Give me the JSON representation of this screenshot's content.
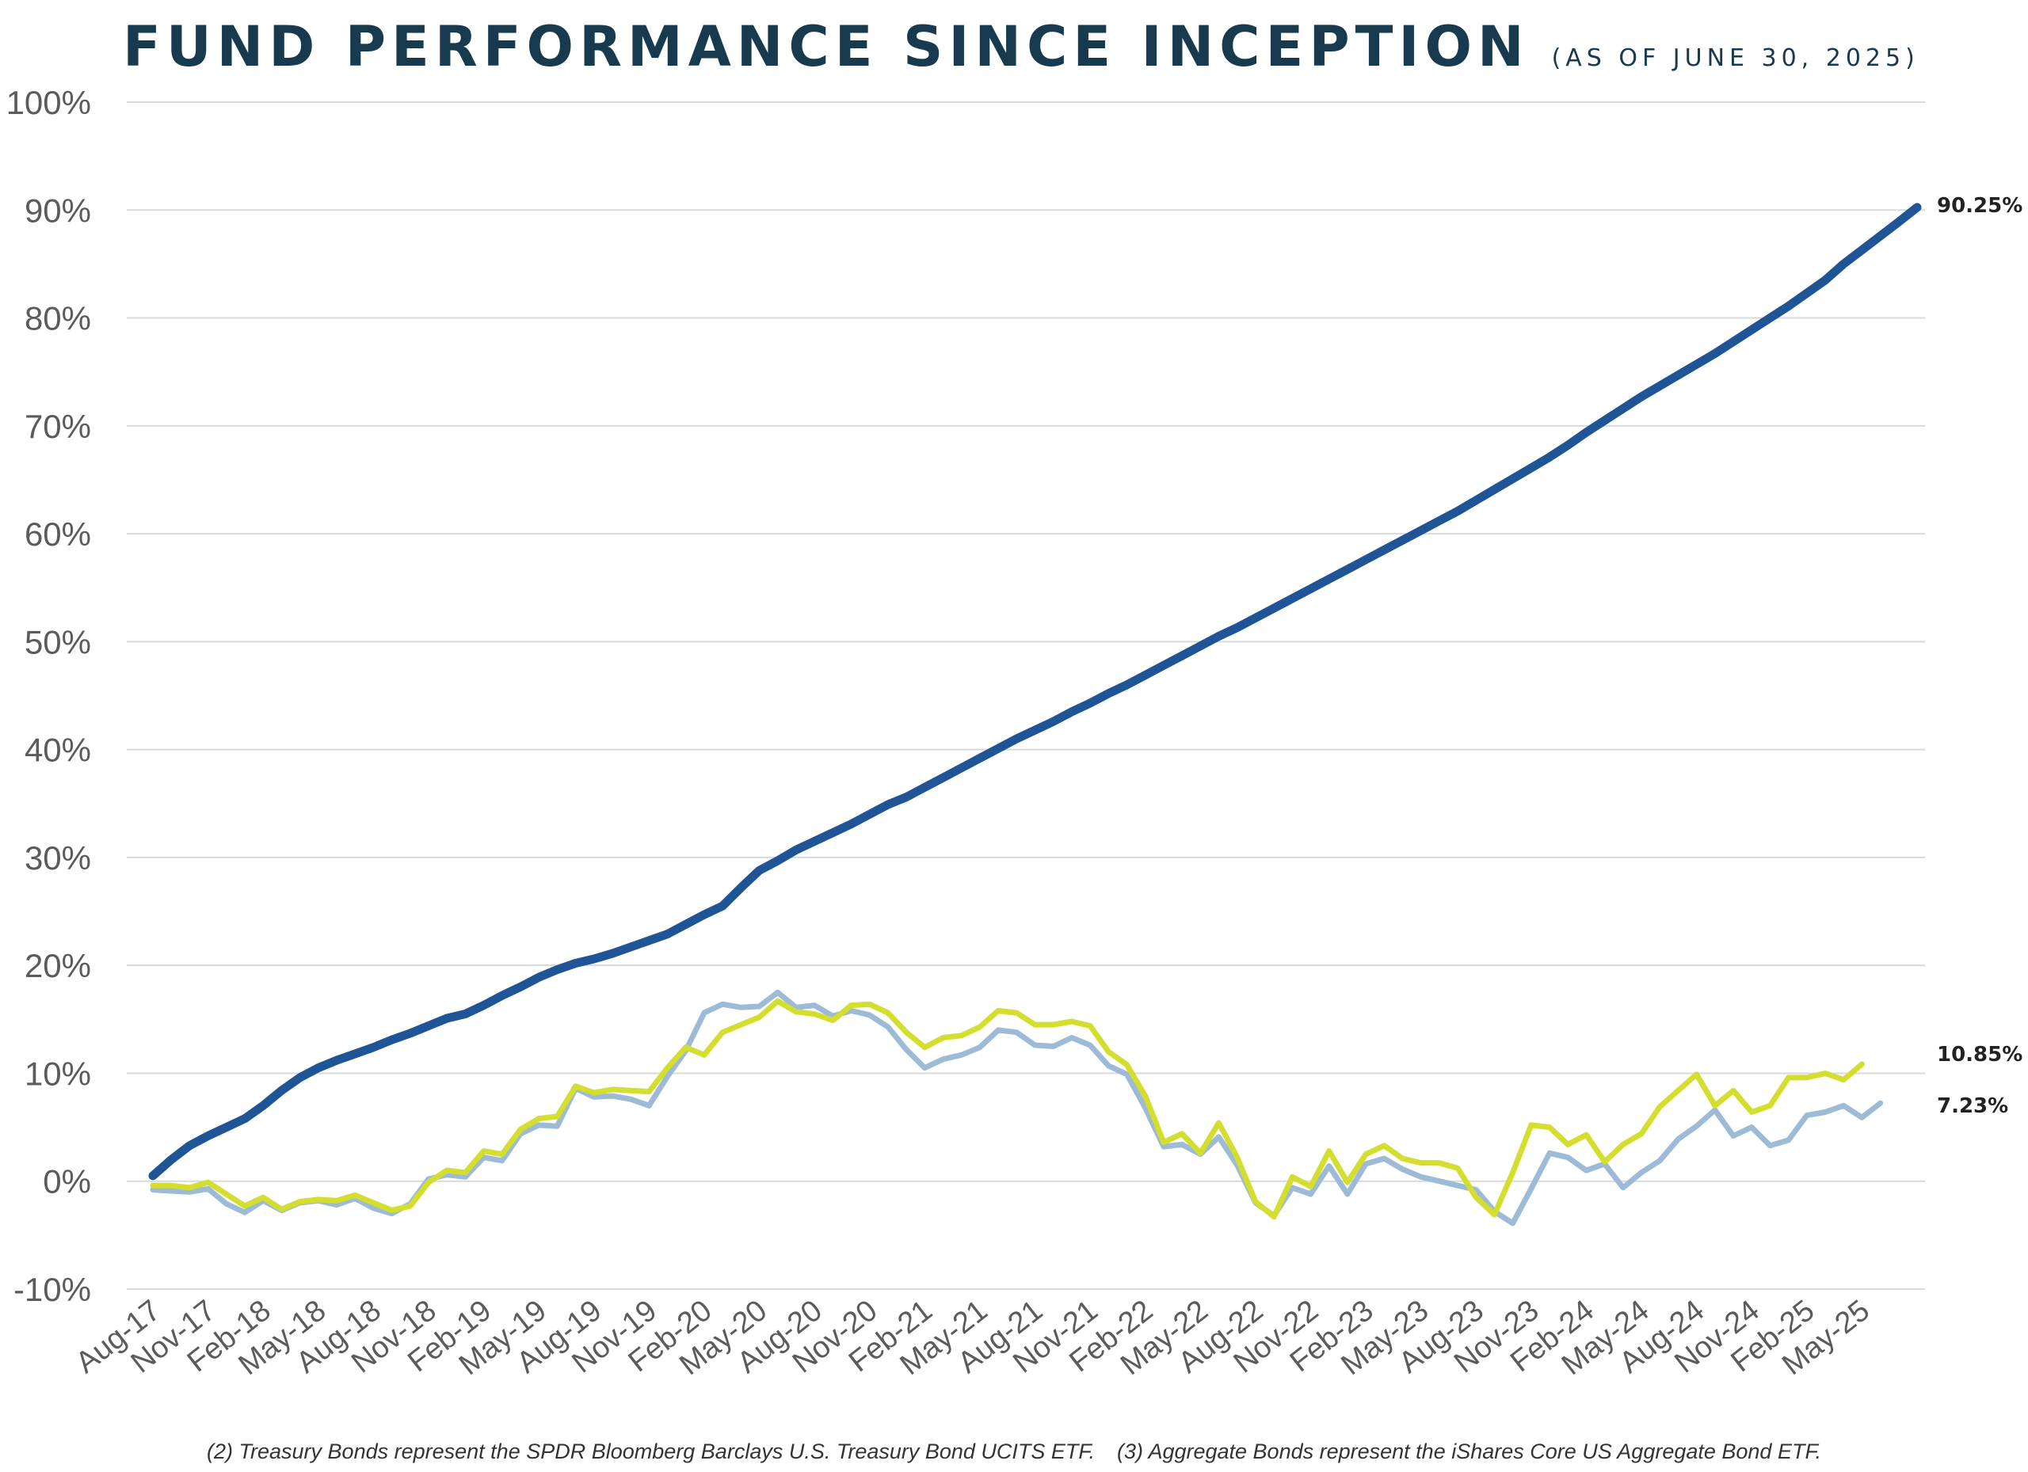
{
  "title": "FUND PERFORMANCE SINCE INCEPTION",
  "subtitle": "(AS OF JUNE 30, 2025)",
  "footnotes": [
    "(2) Treasury Bonds represent the SPDR Bloomberg Barclays U.S. Treasury Bond UCITS ETF.",
    "(3) Aggregate Bonds represent the iShares Core US Aggregate Bond ETF."
  ],
  "colors": {
    "title": "#173a4e",
    "fund": "#1f5596",
    "treasury": "#9dbbd6",
    "aggregate": "#d3de2e",
    "grid": "#d9d9d9"
  },
  "chart_data": {
    "type": "line",
    "title": "FUND PERFORMANCE SINCE INCEPTION",
    "xlabel": "",
    "ylabel": "",
    "ylim": [
      -10,
      100
    ],
    "yticks": [
      -10,
      0,
      10,
      20,
      30,
      40,
      50,
      60,
      70,
      80,
      90,
      100
    ],
    "ytick_labels": [
      "-10%",
      "0%",
      "10%",
      "20%",
      "30%",
      "40%",
      "50%",
      "60%",
      "70%",
      "80%",
      "90%",
      "100%"
    ],
    "x_labels": [
      "Aug-17",
      "Nov-17",
      "Feb-18",
      "May-18",
      "Aug-18",
      "Nov-18",
      "Feb-19",
      "May-19",
      "Aug-19",
      "Nov-19",
      "Feb-20",
      "May-20",
      "Aug-20",
      "Nov-20",
      "Feb-21",
      "May-21",
      "Aug-21",
      "Nov-21",
      "Feb-22",
      "May-22",
      "Aug-22",
      "Nov-22",
      "Feb-23",
      "May-23",
      "Aug-23",
      "Nov-23",
      "Feb-24",
      "May-24",
      "Aug-24",
      "Nov-24",
      "Feb-25",
      "May-25"
    ],
    "x_label_step_months": 3,
    "x_range": [
      "Aug-17",
      "Jun-25"
    ],
    "grid": true,
    "legend": "none",
    "series": [
      {
        "color": "#1f5596",
        "end_label": "90.25%",
        "values": [
          0.5,
          2.0,
          3.3,
          4.2,
          5.0,
          5.8,
          7.0,
          8.4,
          9.6,
          10.5,
          11.2,
          11.8,
          12.4,
          13.1,
          13.7,
          14.4,
          15.1,
          15.5,
          16.3,
          17.2,
          18.0,
          18.9,
          19.6,
          20.2,
          20.6,
          21.1,
          21.7,
          22.3,
          22.9,
          23.8,
          24.7,
          25.5,
          27.2,
          28.8,
          29.7,
          30.7,
          31.5,
          32.3,
          33.1,
          34.0,
          34.9,
          35.6,
          36.5,
          37.4,
          38.3,
          39.2,
          40.1,
          41.0,
          41.8,
          42.6,
          43.5,
          44.3,
          45.2,
          46.0,
          46.9,
          47.8,
          48.7,
          49.6,
          50.5,
          51.3,
          52.2,
          53.1,
          54.0,
          54.9,
          55.8,
          56.7,
          57.6,
          58.5,
          59.4,
          60.3,
          61.2,
          62.1,
          63.1,
          64.1,
          65.1,
          66.1,
          67.1,
          68.2,
          69.4,
          70.5,
          71.6,
          72.7,
          73.7,
          74.7,
          75.7,
          76.7,
          77.8,
          78.9,
          80.0,
          81.1,
          82.3,
          83.5,
          85.0,
          86.3,
          87.6,
          88.9,
          90.25
        ]
      },
      {
        "color": "#9dbbd6",
        "end_label": "7.23%",
        "values": [
          -0.8,
          -0.9,
          -1.0,
          -0.7,
          -2.1,
          -2.9,
          -1.8,
          -2.7,
          -2.0,
          -1.8,
          -2.2,
          -1.6,
          -2.5,
          -3.0,
          -2.1,
          0.2,
          0.6,
          0.4,
          2.2,
          1.9,
          4.4,
          5.2,
          5.1,
          8.6,
          7.8,
          7.9,
          7.6,
          7.0,
          9.7,
          12.1,
          15.6,
          16.4,
          16.1,
          16.2,
          17.5,
          16.1,
          16.3,
          15.3,
          15.8,
          15.4,
          14.3,
          12.2,
          10.5,
          11.3,
          11.7,
          12.4,
          14.0,
          13.8,
          12.6,
          12.5,
          13.3,
          12.6,
          10.7,
          9.9,
          6.8,
          3.2,
          3.4,
          2.5,
          4.1,
          1.5,
          -2.0,
          -3.2,
          -0.6,
          -1.2,
          1.4,
          -1.2,
          1.6,
          2.1,
          1.1,
          0.4,
          0.0,
          -0.4,
          -0.8,
          -2.8,
          -3.9,
          -0.7,
          2.6,
          2.2,
          1.0,
          1.6,
          -0.6,
          0.8,
          1.9,
          3.9,
          5.1,
          6.6,
          4.2,
          5.0,
          3.3,
          3.8,
          6.1,
          6.4,
          7.0,
          5.9,
          7.23
        ]
      },
      {
        "color": "#d3de2e",
        "end_label": "10.85%",
        "values": [
          -0.4,
          -0.4,
          -0.6,
          -0.1,
          -1.2,
          -2.3,
          -1.5,
          -2.6,
          -1.9,
          -1.7,
          -1.8,
          -1.3,
          -2.0,
          -2.7,
          -2.3,
          -0.1,
          1.0,
          0.8,
          2.8,
          2.5,
          4.8,
          5.8,
          6.0,
          8.8,
          8.2,
          8.5,
          8.4,
          8.3,
          10.5,
          12.4,
          11.7,
          13.8,
          14.5,
          15.2,
          16.7,
          15.7,
          15.5,
          14.9,
          16.3,
          16.4,
          15.6,
          13.8,
          12.4,
          13.3,
          13.5,
          14.3,
          15.8,
          15.6,
          14.5,
          14.5,
          14.8,
          14.4,
          12.0,
          10.8,
          7.9,
          3.6,
          4.4,
          2.6,
          5.4,
          2.2,
          -1.9,
          -3.3,
          0.4,
          -0.5,
          2.8,
          -0.1,
          2.5,
          3.3,
          2.1,
          1.7,
          1.7,
          1.2,
          -1.5,
          -3.1,
          0.8,
          5.2,
          5.0,
          3.4,
          4.3,
          1.8,
          3.4,
          4.4,
          6.9,
          8.4,
          9.9,
          7.0,
          8.4,
          6.4,
          7.0,
          9.6,
          9.6,
          10.0,
          9.4,
          10.85
        ]
      }
    ]
  }
}
